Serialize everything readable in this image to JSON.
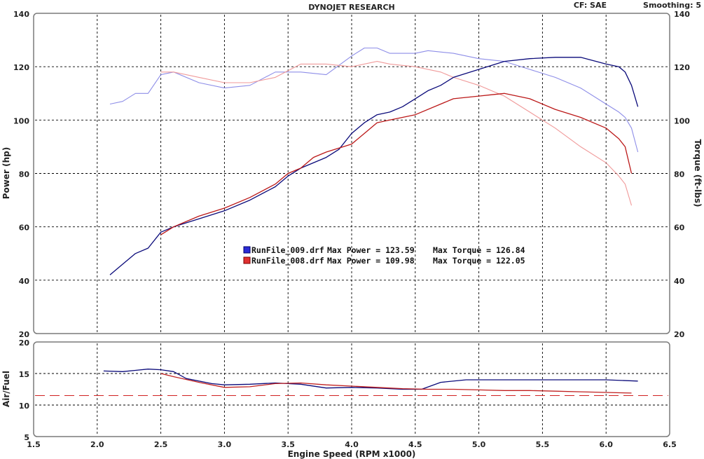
{
  "header": {
    "title": "DYNOJET RESEARCH",
    "cf_label": "CF: SAE",
    "smoothing_label": "Smoothing: 5"
  },
  "chart_data": [
    {
      "type": "line",
      "panel": "top",
      "ylabel": "Power (hp)",
      "y2label": "Torque (ft-lbs)",
      "ylim": [
        20,
        140
      ],
      "y2lim": [
        20,
        140
      ],
      "yticks": [
        20,
        40,
        60,
        80,
        100,
        120,
        140
      ],
      "xlim": [
        1.5,
        6.5
      ],
      "grid": true,
      "legend": [
        {
          "file": "RunFile_009.drf",
          "max_power_label": "Max Power = 123.59",
          "max_torque_label": "Max Torque = 126.84",
          "color": "#2b2bd6"
        },
        {
          "file": "RunFile_008.drf",
          "max_power_label": "Max Power = 109.98",
          "max_torque_label": "Max Torque = 122.05",
          "color": "#e03030"
        }
      ],
      "series": [
        {
          "name": "RunFile_009.drf",
          "quantity": "power",
          "color": "#0a0a7a",
          "width": 1.3,
          "x": [
            2.1,
            2.2,
            2.3,
            2.4,
            2.5,
            2.6,
            2.8,
            3.0,
            3.2,
            3.4,
            3.5,
            3.6,
            3.8,
            3.9,
            4.0,
            4.1,
            4.2,
            4.3,
            4.4,
            4.5,
            4.6,
            4.7,
            4.8,
            5.0,
            5.2,
            5.4,
            5.6,
            5.8,
            6.0,
            6.1,
            6.15,
            6.2,
            6.25
          ],
          "y": [
            42,
            46,
            50,
            52,
            58,
            60,
            63,
            66,
            70,
            75,
            79,
            82,
            86,
            89,
            95,
            99,
            102,
            103,
            105,
            108,
            111,
            113,
            116,
            119,
            122,
            123,
            123.5,
            123.5,
            121,
            120,
            118,
            113,
            105
          ]
        },
        {
          "name": "RunFile_008.drf",
          "quantity": "power",
          "color": "#bb1818",
          "width": 1.3,
          "x": [
            2.5,
            2.6,
            2.8,
            3.0,
            3.2,
            3.4,
            3.5,
            3.6,
            3.7,
            3.8,
            4.0,
            4.1,
            4.2,
            4.3,
            4.5,
            4.7,
            4.8,
            5.0,
            5.1,
            5.2,
            5.4,
            5.6,
            5.8,
            6.0,
            6.1,
            6.15,
            6.2
          ],
          "y": [
            57,
            60,
            64,
            67,
            71,
            76,
            80,
            82,
            86,
            88,
            91,
            95,
            99,
            100,
            102,
            106,
            108,
            109,
            109.5,
            110,
            108,
            104,
            101,
            97,
            93,
            90,
            80
          ]
        },
        {
          "name": "RunFile_009.drf",
          "quantity": "torque",
          "color": "#8e8ee8",
          "width": 1.1,
          "x": [
            2.1,
            2.2,
            2.3,
            2.4,
            2.5,
            2.6,
            2.8,
            3.0,
            3.2,
            3.4,
            3.6,
            3.8,
            4.0,
            4.1,
            4.2,
            4.3,
            4.5,
            4.6,
            4.8,
            5.0,
            5.2,
            5.4,
            5.6,
            5.8,
            6.0,
            6.1,
            6.15,
            6.2,
            6.25
          ],
          "y": [
            106,
            107,
            110,
            110,
            117,
            118,
            114,
            112,
            113,
            118,
            118,
            117,
            124,
            127,
            127,
            125,
            125,
            126,
            125,
            123,
            122,
            119,
            116,
            112,
            106,
            103,
            101,
            97,
            88
          ]
        },
        {
          "name": "RunFile_008.drf",
          "quantity": "torque",
          "color": "#f09a9a",
          "width": 1.1,
          "x": [
            2.5,
            2.6,
            2.8,
            3.0,
            3.2,
            3.4,
            3.6,
            3.8,
            4.0,
            4.2,
            4.3,
            4.5,
            4.7,
            4.8,
            5.0,
            5.2,
            5.4,
            5.6,
            5.8,
            6.0,
            6.1,
            6.15,
            6.2
          ],
          "y": [
            118,
            118,
            116,
            114,
            114,
            116,
            121,
            121,
            120,
            122,
            121,
            120,
            118,
            116,
            113,
            109,
            103,
            97,
            90,
            84,
            79,
            76,
            68
          ]
        }
      ]
    },
    {
      "type": "line",
      "panel": "bottom",
      "ylabel": "Air/Fuel",
      "xlabel": "Engine Speed (RPM x1000)",
      "xlim": [
        1.5,
        6.5
      ],
      "xticks": [
        1.5,
        2.0,
        2.5,
        3.0,
        3.5,
        4.0,
        4.5,
        5.0,
        5.5,
        6.0,
        6.5
      ],
      "ylim": [
        5,
        20
      ],
      "yticks": [
        5,
        10,
        15,
        20
      ],
      "reference_line": {
        "y": 11.5,
        "color": "#d02020",
        "style": "dashed"
      },
      "grid": true,
      "series": [
        {
          "name": "RunFile_009.drf",
          "color": "#0a0a7a",
          "width": 1.3,
          "x": [
            2.05,
            2.2,
            2.3,
            2.4,
            2.5,
            2.6,
            2.7,
            2.9,
            3.0,
            3.2,
            3.4,
            3.6,
            3.8,
            4.0,
            4.2,
            4.4,
            4.55,
            4.7,
            4.9,
            5.0,
            5.5,
            6.0,
            6.25
          ],
          "y": [
            15.4,
            15.3,
            15.5,
            15.7,
            15.6,
            15.3,
            14.2,
            13.4,
            13.2,
            13.3,
            13.5,
            13.3,
            12.7,
            12.8,
            12.7,
            12.5,
            12.5,
            13.6,
            14.0,
            14.0,
            14.0,
            14.0,
            13.8
          ]
        },
        {
          "name": "RunFile_008.drf",
          "color": "#c02020",
          "width": 1.3,
          "x": [
            2.5,
            2.6,
            2.8,
            3.0,
            3.2,
            3.4,
            3.6,
            3.8,
            4.0,
            4.2,
            4.4,
            4.6,
            4.8,
            5.0,
            5.2,
            5.4,
            5.6,
            5.8,
            6.0,
            6.2
          ],
          "y": [
            15.0,
            14.5,
            13.6,
            12.8,
            12.9,
            13.4,
            13.5,
            13.2,
            13.0,
            12.8,
            12.6,
            12.5,
            12.5,
            12.4,
            12.3,
            12.3,
            12.2,
            12.1,
            12.0,
            11.9
          ]
        }
      ]
    }
  ]
}
